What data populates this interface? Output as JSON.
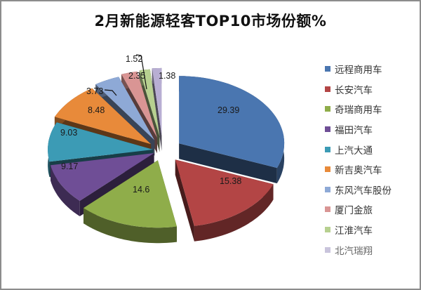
{
  "chart_data": {
    "type": "pie",
    "title": "2月新能源轻客TOP10市场份额%",
    "style": "3d-exploded",
    "categories": [
      "远程商用车",
      "长安汽车",
      "奇瑞商用车",
      "福田汽车",
      "上汽大通",
      "新吉奥汽车",
      "东风汽车股份",
      "厦门金旅",
      "江淮汽车",
      "北汽瑞翔"
    ],
    "values": [
      29.39,
      15.38,
      14.6,
      9.17,
      9.03,
      8.48,
      3.73,
      2.35,
      1.52,
      1.38
    ],
    "value_labels": [
      "29.39",
      "15.38",
      "14.6",
      "9.17",
      "9.03",
      "8.48",
      "3.73",
      "2.35",
      "1.52",
      "1.38"
    ],
    "colors": [
      "#4a76b0",
      "#b34545",
      "#8fad4a",
      "#6f4e96",
      "#3c9bb5",
      "#e88a3a",
      "#8ea9d6",
      "#d99594",
      "#b7d090",
      "#b8aed3"
    ],
    "legend_position": "right",
    "xlabel": "",
    "ylabel": ""
  },
  "title": "2月新能源轻客TOP10市场份额%",
  "legend": [
    {
      "label": "远程商用车",
      "color": "#4a76b0"
    },
    {
      "label": "长安汽车",
      "color": "#b34545"
    },
    {
      "label": "奇瑞商用车",
      "color": "#8fad4a"
    },
    {
      "label": "福田汽车",
      "color": "#6f4e96"
    },
    {
      "label": "上汽大通",
      "color": "#3c9bb5"
    },
    {
      "label": "新吉奥汽车",
      "color": "#e88a3a"
    },
    {
      "label": "东风汽车股份",
      "color": "#8ea9d6"
    },
    {
      "label": "厦门金旅",
      "color": "#d99594"
    },
    {
      "label": "江淮汽车",
      "color": "#b7d090"
    },
    {
      "label": "北汽瑞翔",
      "color": "#c9c4dc"
    }
  ]
}
